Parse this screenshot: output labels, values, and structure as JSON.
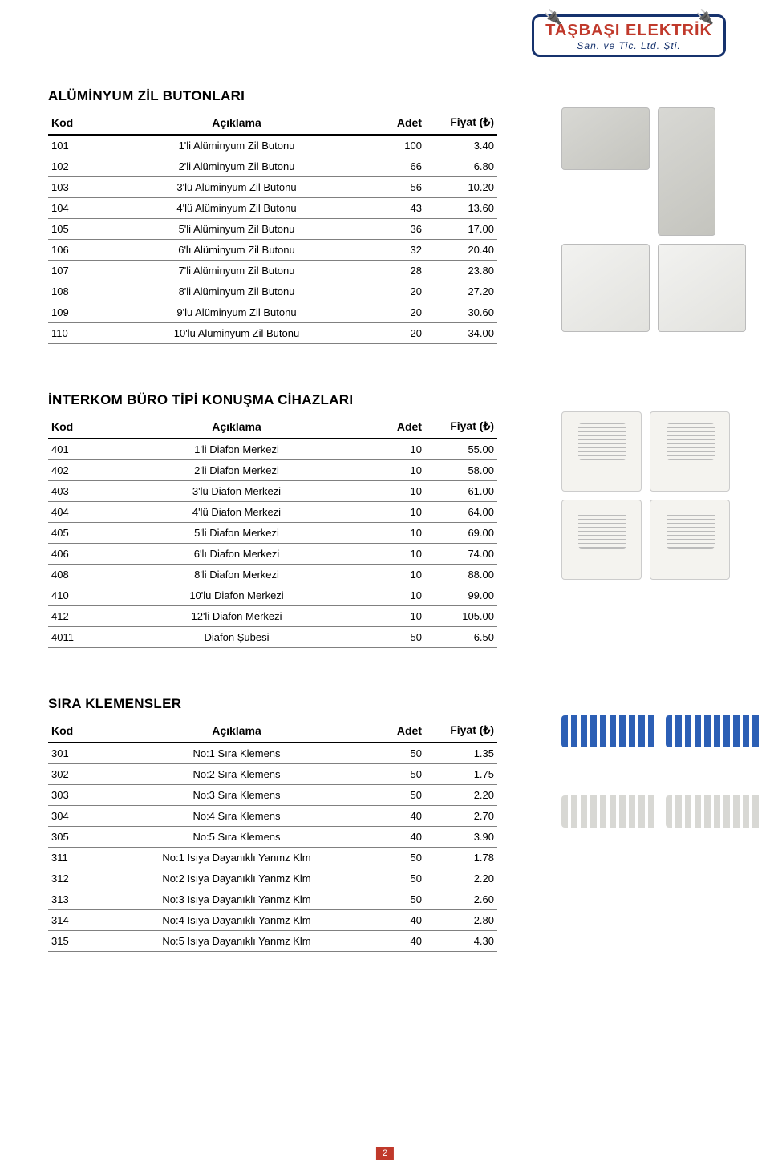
{
  "logo": {
    "title": "TAŞBAŞI ELEKTRİK",
    "subtitle": "San. ve Tic. Ltd. Şti."
  },
  "columns": {
    "kod": "Kod",
    "aciklama": "Açıklama",
    "adet": "Adet",
    "fiyat": "Fiyat (₺)"
  },
  "sections": [
    {
      "title": "ALÜMİNYUM ZİL BUTONLARI",
      "rows": [
        {
          "kod": "101",
          "aciklama": "1'li Alüminyum Zil Butonu",
          "adet": "100",
          "fiyat": "3.40"
        },
        {
          "kod": "102",
          "aciklama": "2'li Alüminyum Zil Butonu",
          "adet": "66",
          "fiyat": "6.80"
        },
        {
          "kod": "103",
          "aciklama": "3'lü Alüminyum Zil Butonu",
          "adet": "56",
          "fiyat": "10.20"
        },
        {
          "kod": "104",
          "aciklama": "4'lü Alüminyum Zil Butonu",
          "adet": "43",
          "fiyat": "13.60"
        },
        {
          "kod": "105",
          "aciklama": "5'li Alüminyum Zil Butonu",
          "adet": "36",
          "fiyat": "17.00"
        },
        {
          "kod": "106",
          "aciklama": "6'lı Alüminyum Zil Butonu",
          "adet": "32",
          "fiyat": "20.40"
        },
        {
          "kod": "107",
          "aciklama": "7'li Alüminyum Zil Butonu",
          "adet": "28",
          "fiyat": "23.80"
        },
        {
          "kod": "108",
          "aciklama": "8'li Alüminyum Zil Butonu",
          "adet": "20",
          "fiyat": "27.20"
        },
        {
          "kod": "109",
          "aciklama": "9'lu Alüminyum Zil Butonu",
          "adet": "20",
          "fiyat": "30.60"
        },
        {
          "kod": "110",
          "aciklama": "10'lu Alüminyum Zil Butonu",
          "adet": "20",
          "fiyat": "34.00"
        }
      ]
    },
    {
      "title": "İNTERKOM BÜRO TİPİ KONUŞMA CİHAZLARI",
      "rows": [
        {
          "kod": "401",
          "aciklama": "1'li Diafon Merkezi",
          "adet": "10",
          "fiyat": "55.00"
        },
        {
          "kod": "402",
          "aciklama": "2'li Diafon Merkezi",
          "adet": "10",
          "fiyat": "58.00"
        },
        {
          "kod": "403",
          "aciklama": "3'lü Diafon Merkezi",
          "adet": "10",
          "fiyat": "61.00"
        },
        {
          "kod": "404",
          "aciklama": "4'lü Diafon Merkezi",
          "adet": "10",
          "fiyat": "64.00"
        },
        {
          "kod": "405",
          "aciklama": "5'li Diafon Merkezi",
          "adet": "10",
          "fiyat": "69.00"
        },
        {
          "kod": "406",
          "aciklama": "6'lı Diafon Merkezi",
          "adet": "10",
          "fiyat": "74.00"
        },
        {
          "kod": "408",
          "aciklama": "8'li Diafon Merkezi",
          "adet": "10",
          "fiyat": "88.00"
        },
        {
          "kod": "410",
          "aciklama": "10'lu Diafon Merkezi",
          "adet": "10",
          "fiyat": "99.00"
        },
        {
          "kod": "412",
          "aciklama": "12'li Diafon Merkezi",
          "adet": "10",
          "fiyat": "105.00"
        },
        {
          "kod": "4011",
          "aciklama": "Diafon Şubesi",
          "adet": "50",
          "fiyat": "6.50"
        }
      ]
    },
    {
      "title": "SIRA KLEMENSLER",
      "rows": [
        {
          "kod": "301",
          "aciklama": "No:1 Sıra Klemens",
          "adet": "50",
          "fiyat": "1.35"
        },
        {
          "kod": "302",
          "aciklama": "No:2 Sıra Klemens",
          "adet": "50",
          "fiyat": "1.75"
        },
        {
          "kod": "303",
          "aciklama": "No:3 Sıra Klemens",
          "adet": "50",
          "fiyat": "2.20"
        },
        {
          "kod": "304",
          "aciklama": "No:4 Sıra Klemens",
          "adet": "40",
          "fiyat": "2.70"
        },
        {
          "kod": "305",
          "aciklama": "No:5 Sıra Klemens",
          "adet": "40",
          "fiyat": "3.90"
        },
        {
          "kod": "311",
          "aciklama": "No:1 Isıya Dayanıklı Yanmz Klm",
          "adet": "50",
          "fiyat": "1.78"
        },
        {
          "kod": "312",
          "aciklama": "No:2 Isıya Dayanıklı Yanmz Klm",
          "adet": "50",
          "fiyat": "2.20"
        },
        {
          "kod": "313",
          "aciklama": "No:3 Isıya Dayanıklı Yanmz Klm",
          "adet": "50",
          "fiyat": "2.60"
        },
        {
          "kod": "314",
          "aciklama": "No:4 Isıya Dayanıklı Yanmz Klm",
          "adet": "40",
          "fiyat": "2.80"
        },
        {
          "kod": "315",
          "aciklama": "No:5 Isıya Dayanıklı Yanmz Klm",
          "adet": "40",
          "fiyat": "4.30"
        }
      ]
    }
  ],
  "page_number": "2",
  "colors": {
    "brand_red": "#c0392b",
    "brand_navy": "#16326d",
    "header_rule": "#000000",
    "row_rule": "#808080"
  }
}
